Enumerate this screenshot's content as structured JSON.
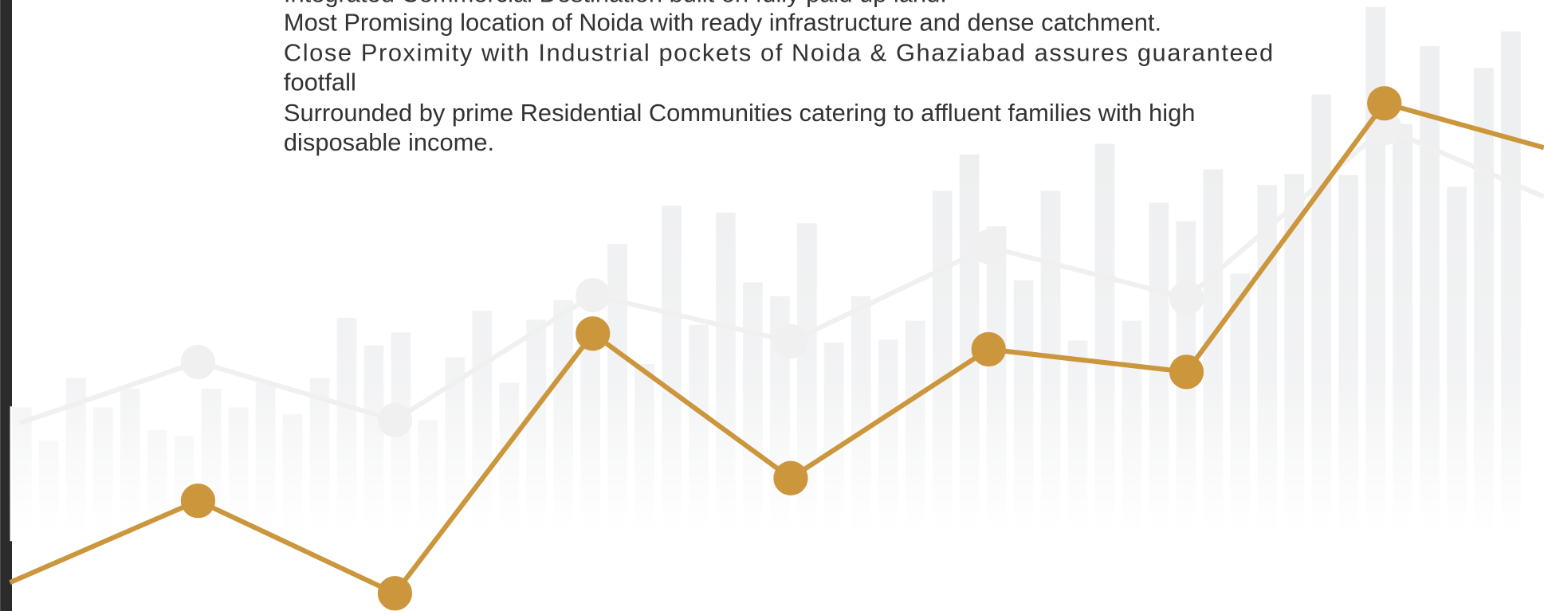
{
  "text_block": {
    "lines": [
      "Integrated Commercial Destination built on fully paid up land.",
      "Most Promising location of Noida with ready infrastructure and dense catchment.",
      "Close Proximity with Industrial pockets of Noida & Ghaziabad assures guaranteed",
      "footfall",
      "Surrounded by prime Residential Communities catering to affluent families with high",
      "disposable income."
    ]
  }
}
